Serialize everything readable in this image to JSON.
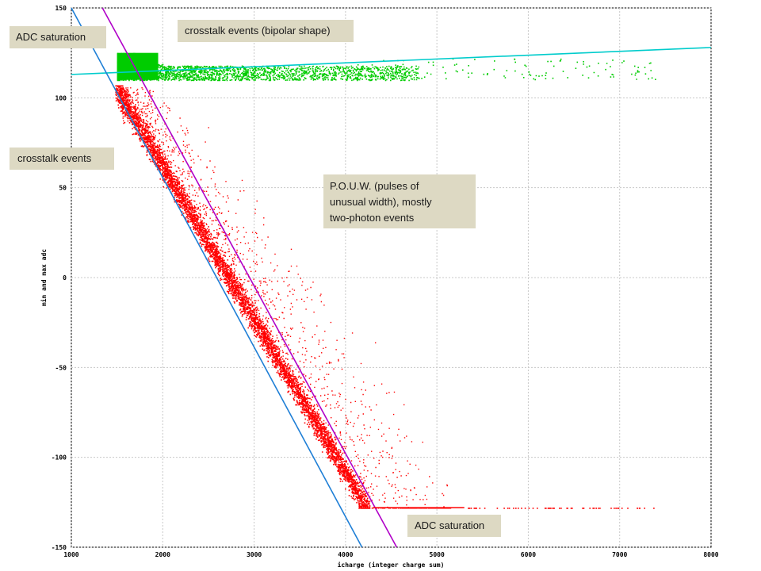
{
  "chart_data": {
    "type": "scatter",
    "title": "",
    "xlabel": "icharge (integer charge sum)",
    "ylabel": "min and max adc",
    "xlim": [
      1000,
      8000
    ],
    "ylim": [
      -150,
      150
    ],
    "x_ticks": [
      "1000",
      "2000",
      "3000",
      "4000",
      "5000",
      "6000",
      "7000",
      "8000"
    ],
    "y_ticks": [
      "150",
      "100",
      "50",
      "0",
      "-50",
      "-100",
      "-150"
    ],
    "grid": true,
    "series": [
      {
        "color": "#00cc00",
        "description_points": "max adc band",
        "values_summary": {
          "x_range": [
            1500,
            7400
          ],
          "dense_y_range": [
            110,
            125
          ],
          "sample_points": [
            [
              1500,
              124
            ],
            [
              1600,
              118
            ],
            [
              1800,
              112
            ],
            [
              2500,
              114
            ],
            [
              3500,
              115
            ],
            [
              4500,
              116
            ],
            [
              5500,
              115
            ],
            [
              6500,
              116
            ],
            [
              7400,
              113
            ]
          ]
        }
      },
      {
        "color": "#ff0000",
        "values_summary": {
          "x_range": [
            1450,
            7400
          ],
          "dense_band": [
            [
              1500,
              106
            ],
            [
              2000,
              70
            ],
            [
              2500,
              20
            ],
            [
              3000,
              -20
            ],
            [
              3500,
              -65
            ],
            [
              4000,
              -105
            ],
            [
              4200,
              -128
            ]
          ],
          "saturation_y": -128,
          "sample_points": [
            [
              1800,
              40
            ],
            [
              2200,
              60
            ],
            [
              2800,
              10
            ],
            [
              3300,
              -40
            ],
            [
              3800,
              -60
            ],
            [
              4300,
              -75
            ],
            [
              5000,
              -95
            ],
            [
              5500,
              -100
            ],
            [
              6000,
              -110
            ],
            [
              6500,
              -128
            ],
            [
              7400,
              -128
            ]
          ]
        }
      }
    ],
    "lines": [
      {
        "color": "#00cccc",
        "from": [
          1000,
          113
        ],
        "to": [
          8000,
          128
        ]
      },
      {
        "color": "#1f7fd6",
        "from": [
          1000,
          150
        ],
        "to": [
          4180,
          -150
        ]
      },
      {
        "color": "#b000c8",
        "from": [
          1340,
          150
        ],
        "to": [
          4560,
          -150
        ]
      },
      {
        "color": "#ff0000",
        "from": [
          4300,
          -128
        ],
        "to": [
          5300,
          -128
        ]
      }
    ]
  },
  "callouts": {
    "adc_saturation_top": "ADC saturation",
    "crosstalk_bipolar": "crosstalk events (bipolar shape)",
    "crosstalk_events": "crosstalk events",
    "pouw": "P.O.U.W. (pulses of\nunusual width), mostly\ntwo-photon events",
    "adc_saturation_bottom": "ADC saturation"
  }
}
